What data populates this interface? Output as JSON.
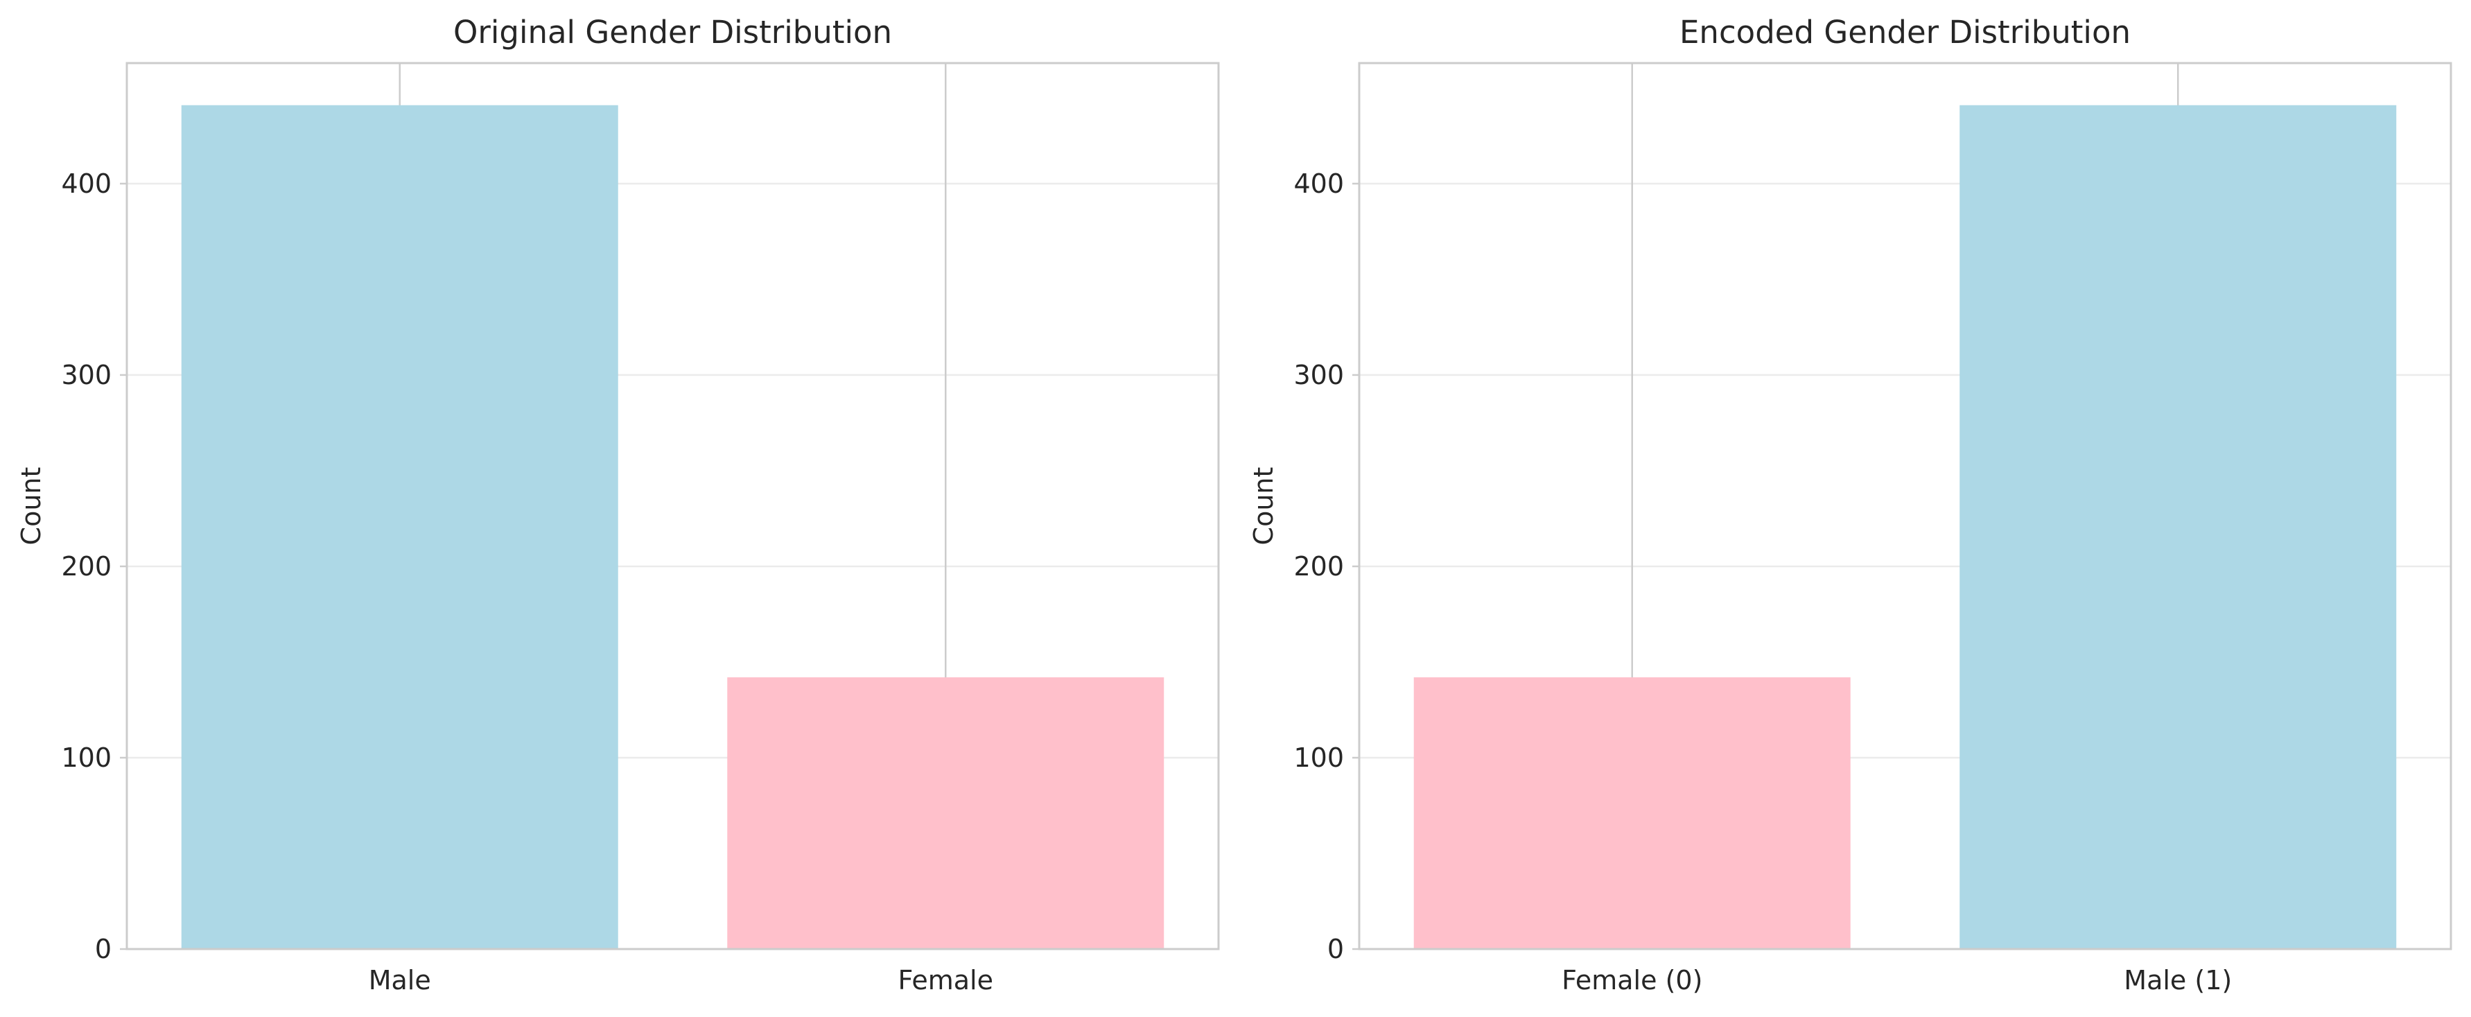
{
  "colors": {
    "male": "#add8e6",
    "female": "#ffc0cb"
  },
  "chart_data": [
    {
      "type": "bar",
      "title": "Original Gender Distribution",
      "xlabel": "",
      "ylabel": "Count",
      "categories": [
        "Male",
        "Female"
      ],
      "values": [
        441,
        142
      ],
      "bar_colors": [
        "#add8e6",
        "#ffc0cb"
      ],
      "ylim": [
        0,
        463
      ],
      "yticks": [
        0,
        100,
        200,
        300,
        400
      ],
      "grid": true,
      "legend": "none"
    },
    {
      "type": "bar",
      "title": "Encoded Gender Distribution",
      "xlabel": "",
      "ylabel": "Count",
      "categories": [
        "Female (0)",
        "Male (1)"
      ],
      "values": [
        142,
        441
      ],
      "bar_colors": [
        "#ffc0cb",
        "#add8e6"
      ],
      "ylim": [
        0,
        463
      ],
      "yticks": [
        0,
        100,
        200,
        300,
        400
      ],
      "grid": true,
      "legend": "none"
    }
  ]
}
